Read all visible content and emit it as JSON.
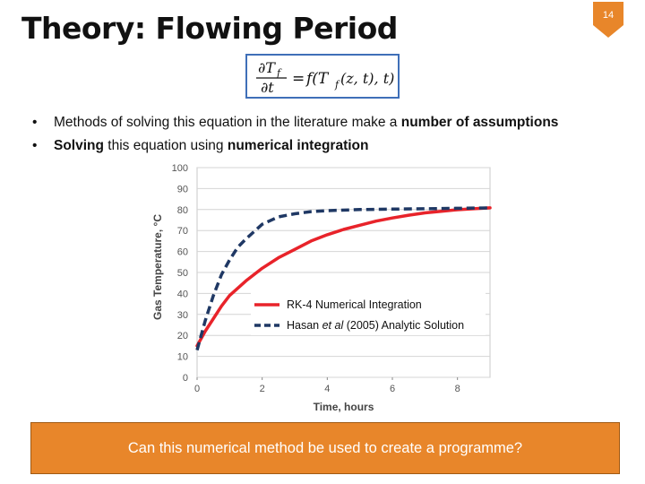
{
  "slide": {
    "title": "Theory: Flowing Period",
    "page_number": "14",
    "accent_color": "#e8862a",
    "equation_border_color": "#3f6fb8"
  },
  "equation": {
    "lhs_numerator": "∂T",
    "lhs_subscript": "f",
    "lhs_denominator": "∂t",
    "equals": "=",
    "rhs_prefix": "f(T",
    "rhs_subscript": "f",
    "rhs_suffix": "(z, t), t)"
  },
  "bullets": [
    {
      "marker": "•",
      "segments": [
        {
          "text": "Methods of solving this equation in the literature make a ",
          "bold": false
        },
        {
          "text": "number of assumptions",
          "bold": true
        }
      ]
    },
    {
      "marker": "•",
      "segments": [
        {
          "text": "Solving",
          "bold": true
        },
        {
          "text": " this equation using ",
          "bold": false
        },
        {
          "text": "numerical integration",
          "bold": true
        }
      ]
    }
  ],
  "chart_data": {
    "type": "line",
    "xlabel": "Time, hours",
    "ylabel": "Gas Temperature, °C",
    "xlim": [
      0,
      9
    ],
    "ylim": [
      0,
      100
    ],
    "xticks": [
      0,
      2,
      4,
      6,
      8
    ],
    "yticks": [
      0,
      10,
      20,
      30,
      40,
      50,
      60,
      70,
      80,
      90,
      100
    ],
    "grid": true,
    "legend_position": "center-right",
    "series": [
      {
        "name": "RK-4 Numerical Integration",
        "color": "#e8232a",
        "dash": "solid",
        "x": [
          0,
          0.25,
          0.5,
          0.75,
          1,
          1.5,
          2,
          2.5,
          3,
          3.5,
          4,
          4.5,
          5,
          5.5,
          6,
          6.5,
          7,
          7.5,
          8,
          8.5,
          9
        ],
        "y": [
          15,
          22,
          28,
          34,
          39,
          46,
          52,
          57,
          61,
          65,
          68,
          70.5,
          72.5,
          74.5,
          76,
          77.3,
          78.4,
          79.2,
          79.9,
          80.4,
          80.8
        ]
      },
      {
        "name": "Hasan et al (2005) Analytic Solution",
        "name_parts": [
          {
            "text": "Hasan ",
            "italic": false
          },
          {
            "text": "et al",
            "italic": true
          },
          {
            "text": " (2005) Analytic Solution",
            "italic": false
          }
        ],
        "color": "#1f3864",
        "dash": "dashed",
        "x": [
          0,
          0.25,
          0.5,
          0.75,
          1,
          1.25,
          1.5,
          2,
          2.5,
          3,
          3.5,
          4,
          5,
          6,
          7,
          8,
          9
        ],
        "y": [
          13,
          27,
          39,
          49,
          56,
          62,
          66,
          73,
          76.5,
          78,
          79,
          79.5,
          80,
          80.2,
          80.4,
          80.6,
          80.8
        ]
      }
    ]
  },
  "callout": {
    "text": "Can this numerical method be used to create a programme?"
  }
}
